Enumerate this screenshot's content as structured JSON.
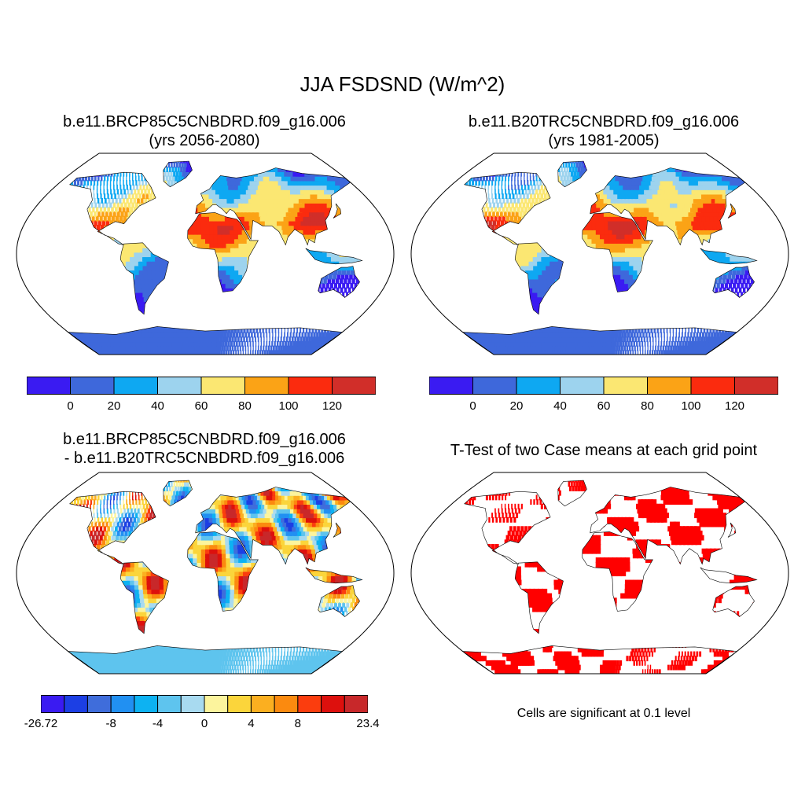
{
  "title": "JJA FSDSND (W/m^2)",
  "panels": {
    "tl": {
      "line1": "b.e11.BRCP85C5CNBDRD.f09_g16.006",
      "line2": "(yrs 2056-2080)"
    },
    "tr": {
      "line1": "b.e11.B20TRC5CNBDRD.f09_g16.006",
      "line2": "(yrs 1981-2005)"
    },
    "bl": {
      "line1": "b.e11.BRCP85C5CNBDRD.f09_g16.006",
      "line2": "- b.e11.B20TRC5CNBDRD.f09_g16.006"
    },
    "br": {
      "line1": "T-Test of two Case means at each grid point"
    }
  },
  "colorbar_abs": {
    "colors": [
      "#3a1bf2",
      "#3e68db",
      "#0ea8f2",
      "#9dd3ee",
      "#fbe772",
      "#fba316",
      "#fb2b0e",
      "#d12e29"
    ],
    "ticks": [
      {
        "label": "0",
        "pos": 1
      },
      {
        "label": "20",
        "pos": 2
      },
      {
        "label": "40",
        "pos": 3
      },
      {
        "label": "60",
        "pos": 4
      },
      {
        "label": "80",
        "pos": 5
      },
      {
        "label": "100",
        "pos": 6
      },
      {
        "label": "120",
        "pos": 7
      }
    ]
  },
  "colorbar_diff": {
    "colors": [
      "#3a1bf2",
      "#1c3fe4",
      "#3f6ddb",
      "#2190f2",
      "#0db2f2",
      "#5ec4ee",
      "#a8daf0",
      "#fcf49d",
      "#fbd53b",
      "#fbaf20",
      "#fb8a0f",
      "#fb3d0e",
      "#dd100d",
      "#c8282a"
    ],
    "ticks": [
      {
        "label": "-26.72",
        "pos": 0
      },
      {
        "label": "-8",
        "pos": 3
      },
      {
        "label": "-4",
        "pos": 5
      },
      {
        "label": "0",
        "pos": 7
      },
      {
        "label": "4",
        "pos": 9
      },
      {
        "label": "8",
        "pos": 11
      },
      {
        "label": "23.4",
        "pos": 14
      }
    ]
  },
  "significance_note": "Cells are significant at 0.1 level",
  "significance_color": "#ff0000"
}
